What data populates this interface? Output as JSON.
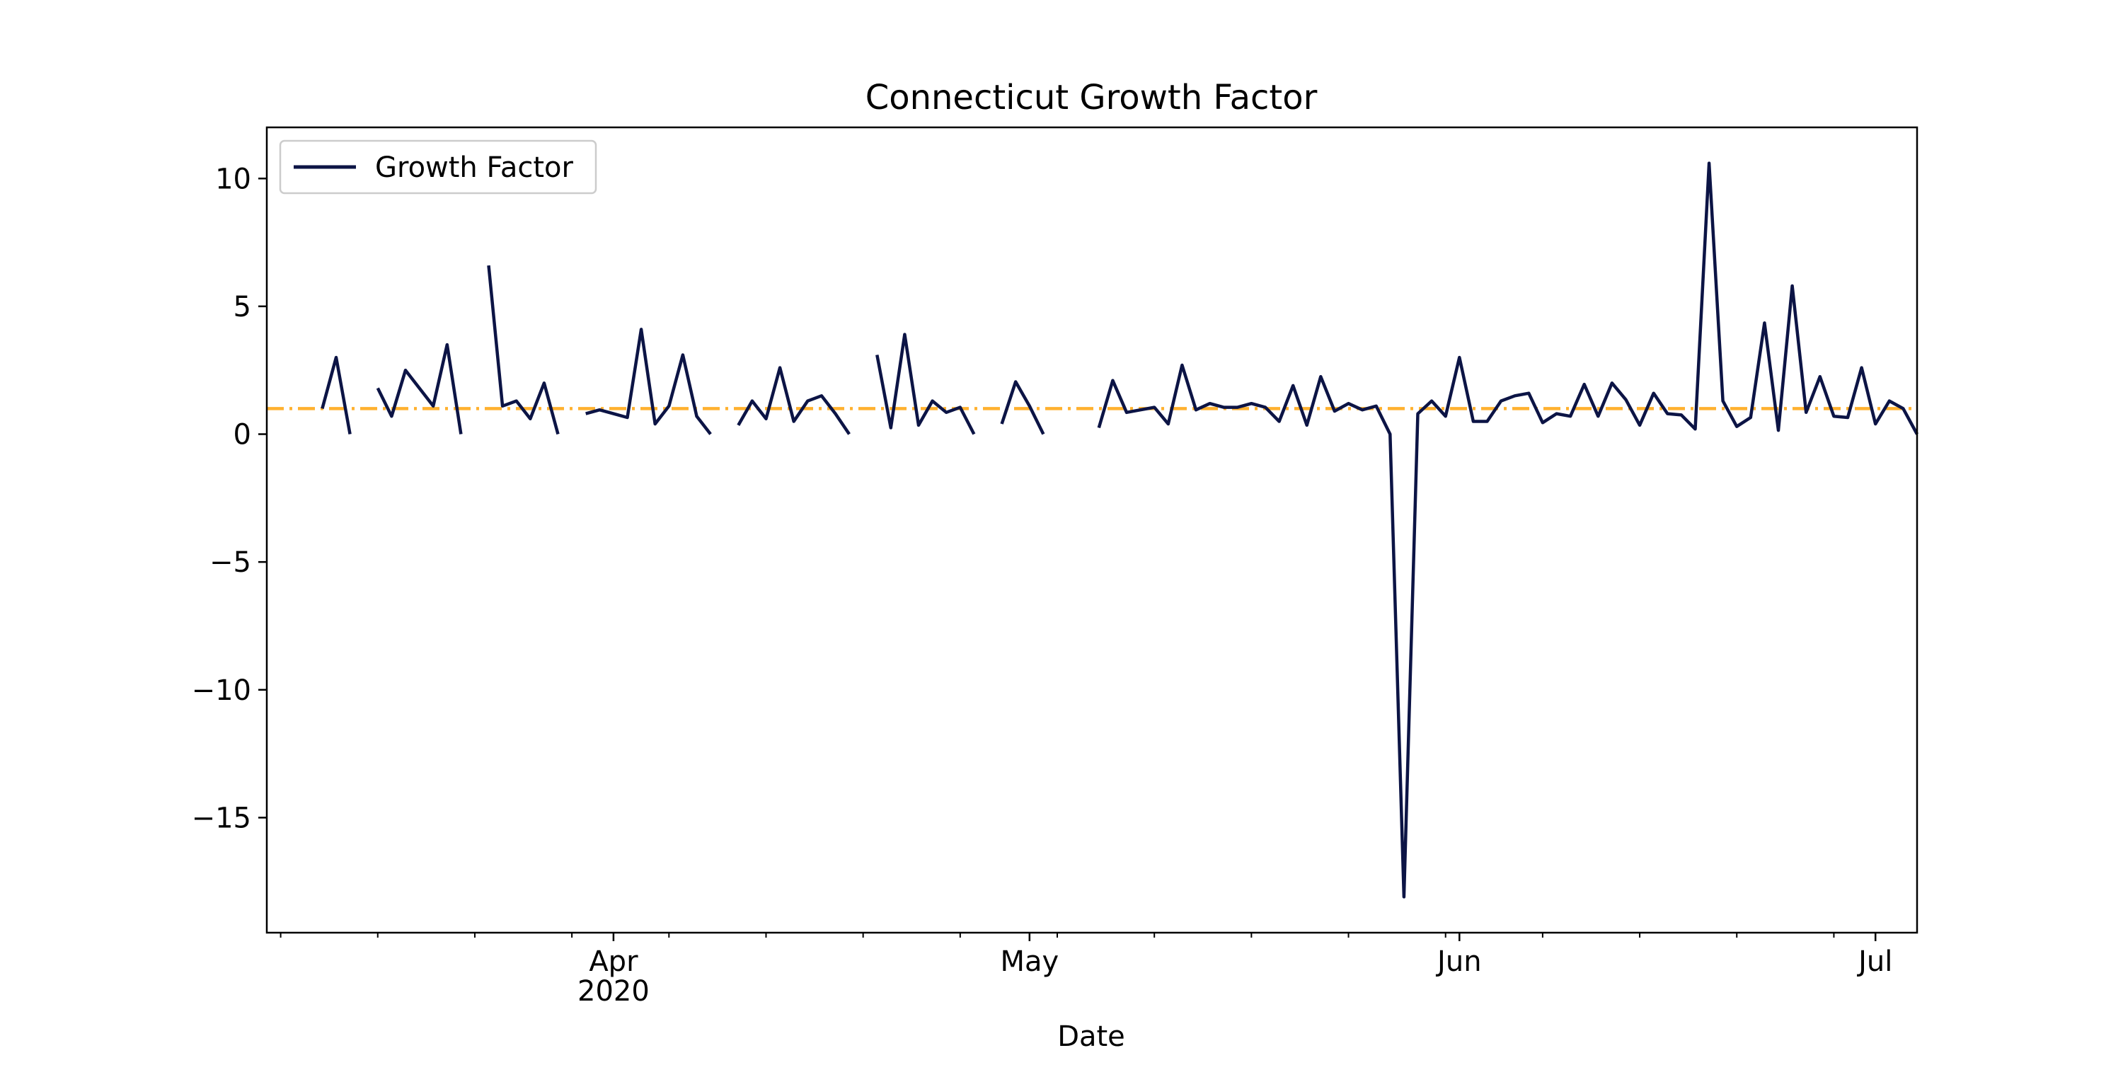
{
  "chart_data": {
    "type": "line",
    "title": "Connecticut Growth Factor",
    "xlabel": "Date",
    "ylabel": "",
    "x_axis_type": "date",
    "xlim": [
      "2020-03-07",
      "2020-07-04"
    ],
    "ylim": [
      -19.5,
      12
    ],
    "y_ticks": [
      10,
      5,
      0,
      -5,
      -10,
      -15
    ],
    "y_tick_labels": [
      "10",
      "5",
      "0",
      "−5",
      "−10",
      "−15"
    ],
    "x_ticks": [
      {
        "date": "2020-04-01",
        "label": "Apr",
        "sublabel": "2020"
      },
      {
        "date": "2020-05-01",
        "label": "May",
        "sublabel": ""
      },
      {
        "date": "2020-06-01",
        "label": "Jun",
        "sublabel": ""
      },
      {
        "date": "2020-07-01",
        "label": "Jul",
        "sublabel": ""
      }
    ],
    "grid": false,
    "legend": {
      "position": "top-left",
      "entries": [
        "Growth Factor"
      ]
    },
    "reference_line": {
      "y": 1.0,
      "color": "#ffb12f",
      "style": "dash-dot"
    },
    "series": [
      {
        "name": "Growth Factor",
        "color": "#0c1445",
        "start_date": "2020-03-11",
        "values": [
          1.0,
          3.0,
          0.0,
          null,
          1.8,
          0.7,
          2.5,
          1.8,
          1.1,
          3.5,
          0.0,
          null,
          6.6,
          1.1,
          1.3,
          0.6,
          2.0,
          0.0,
          null,
          0.8,
          0.95,
          0.8,
          0.65,
          4.1,
          0.4,
          1.1,
          3.1,
          0.7,
          0.0,
          null,
          0.35,
          1.3,
          0.6,
          2.6,
          0.5,
          1.3,
          1.5,
          0.8,
          0.0,
          null,
          3.1,
          0.25,
          3.9,
          0.35,
          1.3,
          0.85,
          1.05,
          0.0,
          null,
          0.4,
          2.05,
          1.1,
          0.0,
          null,
          null,
          null,
          0.25,
          2.1,
          0.85,
          0.95,
          1.05,
          0.4,
          2.7,
          0.95,
          1.2,
          1.05,
          1.05,
          1.2,
          1.05,
          0.5,
          1.9,
          0.35,
          2.25,
          0.9,
          1.2,
          0.95,
          1.1,
          0.0,
          -18.1,
          0.8,
          1.3,
          0.7,
          3.0,
          0.5,
          0.5,
          1.3,
          1.5,
          1.6,
          0.45,
          0.8,
          0.7,
          1.95,
          0.7,
          2.0,
          1.35,
          0.35,
          1.6,
          0.8,
          0.75,
          0.2,
          10.6,
          1.3,
          0.3,
          0.65,
          4.35,
          0.15,
          5.8,
          0.85,
          2.25,
          0.7,
          0.65,
          2.6,
          0.4,
          1.3,
          1.0,
          0.0
        ]
      }
    ]
  }
}
